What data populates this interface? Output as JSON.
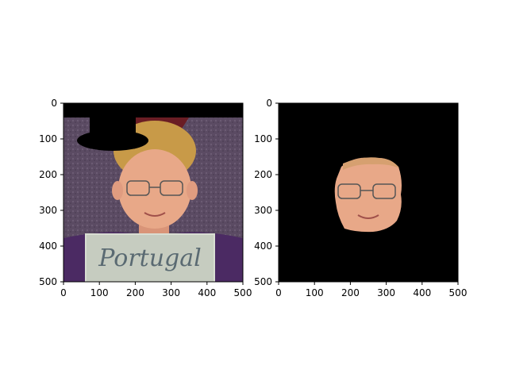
{
  "chart_data": [
    {
      "type": "image",
      "title": "",
      "xlabel": "",
      "ylabel": "",
      "xlim": [
        0,
        500
      ],
      "ylim": [
        500,
        0
      ],
      "xticks": [
        "0",
        "100",
        "200",
        "300",
        "400",
        "500"
      ],
      "yticks": [
        "0",
        "100",
        "200",
        "300",
        "400",
        "500"
      ],
      "content": "portrait photo with a black top-hat shaped mask at top-left and a black band across the top",
      "sign_text": "Portugal"
    },
    {
      "type": "image",
      "title": "",
      "xlabel": "",
      "ylabel": "",
      "xlim": [
        0,
        500
      ],
      "ylim": [
        500,
        0
      ],
      "xticks": [
        "0",
        "100",
        "200",
        "300",
        "400",
        "500"
      ],
      "yticks": [
        "0",
        "100",
        "200",
        "300",
        "400",
        "500"
      ],
      "content": "face region only, everything else masked to black"
    }
  ],
  "colors": {
    "mask": "#000000",
    "background_purple": "#5e4a63",
    "shirt": "#4b2a63",
    "skin": "#e8a888",
    "hair": "#c89a48",
    "sign": "#c6ccc0"
  }
}
